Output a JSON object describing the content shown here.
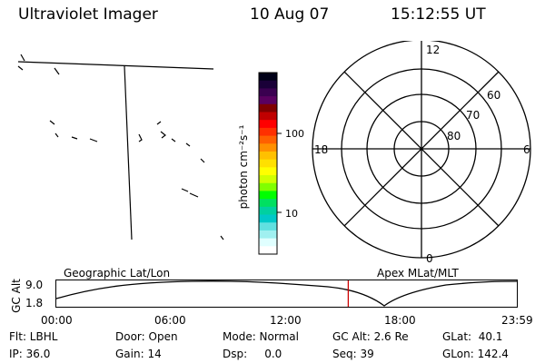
{
  "header": {
    "instrument": "Ultraviolet Imager",
    "date": "10 Aug 07",
    "time": "15:12:55 UT"
  },
  "colorbar": {
    "unit_label": "photon cm⁻²s⁻¹",
    "tick_labels": [
      "100",
      "10"
    ],
    "colors": [
      "#000018",
      "#1a0038",
      "#3a0050",
      "#5a0060",
      "#800000",
      "#c00000",
      "#ff0000",
      "#ff3000",
      "#ff6000",
      "#ff9000",
      "#ffc000",
      "#ffe000",
      "#ffff00",
      "#d0ff00",
      "#80ff00",
      "#00ff00",
      "#00e060",
      "#00d0a0",
      "#00c8c8",
      "#60e0e0",
      "#a0f0f0",
      "#e0ffff",
      "#ffffff"
    ]
  },
  "polar_plot": {
    "clock_labels": [
      "12",
      "18",
      "6",
      "0"
    ],
    "ring_labels": [
      "60",
      "70",
      "80"
    ]
  },
  "timeline": {
    "ylabel": "GC Alt",
    "y_ticks": [
      "9.0",
      "1.8"
    ],
    "left_title": "Geographic Lat/Lon",
    "right_title": "Apex MLat/MLT",
    "x_ticks": [
      "00:00",
      "06:00",
      "12:00",
      "18:00",
      "23:59"
    ],
    "current_time_fraction": 0.634,
    "marker_color": "#cc0000"
  },
  "status": {
    "filter": "Flt: LBHL",
    "ip": "IP: 36.0",
    "door": "Door: Open",
    "gain": "Gain: 14",
    "mode": "Mode: Normal",
    "dsp": "Dsp:     0.0",
    "gc_alt": "GC Alt: 2.6 Re",
    "seq": "Seq: 39",
    "glat": "GLat:  40.1",
    "glon": "GLon: 142.4"
  }
}
